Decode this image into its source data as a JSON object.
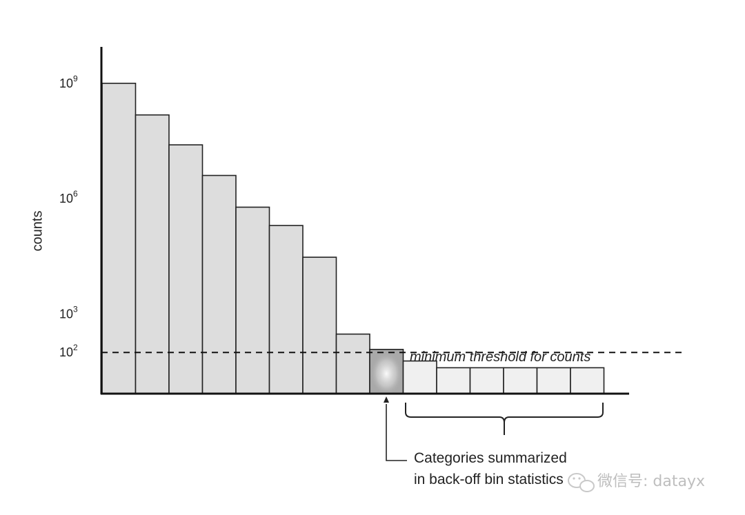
{
  "chart_data": {
    "type": "bar",
    "scale": "log",
    "ylabel": "counts",
    "xlabel": "",
    "title": "",
    "ylim": [
      10,
      10000000000
    ],
    "yticks": [
      {
        "value": 1000000000,
        "base": "10",
        "exp": "9"
      },
      {
        "value": 1000000,
        "base": "10",
        "exp": "6"
      },
      {
        "value": 1000,
        "base": "10",
        "exp": "3"
      },
      {
        "value": 100,
        "base": "10",
        "exp": "2"
      }
    ],
    "values": [
      1000000000,
      150000000,
      25000000,
      4000000,
      600000,
      200000,
      30000,
      300,
      120,
      60,
      40,
      40,
      40,
      40,
      40
    ],
    "bar_roles": [
      "above",
      "above",
      "above",
      "above",
      "above",
      "above",
      "above",
      "above",
      "highlight",
      "below",
      "below",
      "below",
      "below",
      "below",
      "below"
    ],
    "threshold": {
      "value": 100,
      "label": "minimum threshold for counts"
    },
    "annotation": {
      "lines": [
        "Categories summarized",
        "in back-off bin statistics"
      ]
    },
    "colors": {
      "bar_above": "#dddddd",
      "bar_below": "#f0f0f0",
      "bar_highlight": "#a9a9a9",
      "stroke": "#222222"
    }
  },
  "watermark": {
    "text": "微信号: datayx",
    "icon": "wechat-icon"
  }
}
